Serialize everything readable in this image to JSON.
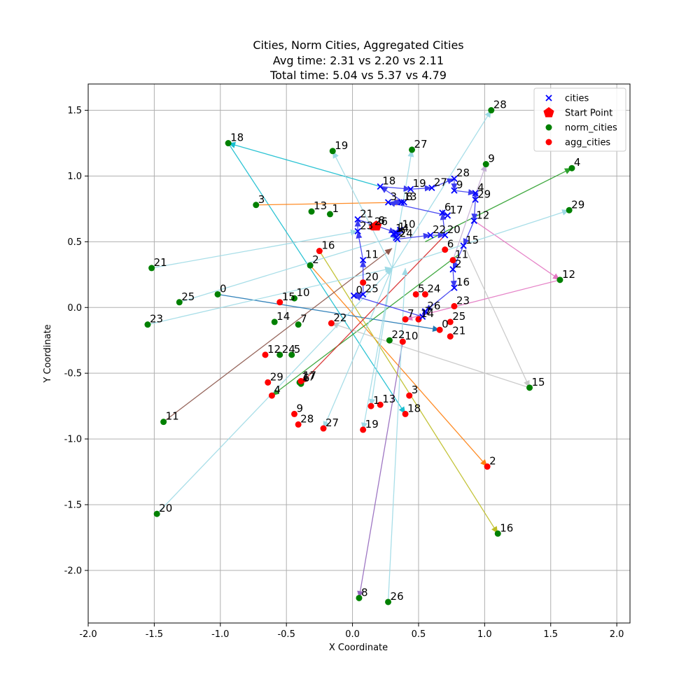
{
  "chart_data": {
    "type": "scatter",
    "title_lines": [
      "Cities, Norm Cities, Aggregated Cities",
      "Avg time: 2.31 vs 2.20 vs 2.11",
      "Total time: 5.04 vs 5.37 vs 4.79"
    ],
    "xlabel": "X Coordinate",
    "ylabel": "Y Coordinate",
    "xlim": [
      -2.0,
      2.1
    ],
    "ylim": [
      -2.4,
      1.7
    ],
    "xticks": [
      -2.0,
      -1.5,
      -1.0,
      -0.5,
      0.0,
      0.5,
      1.0,
      1.5,
      2.0
    ],
    "yticks": [
      -2.0,
      -1.5,
      -1.0,
      -0.5,
      0.0,
      0.5,
      1.0,
      1.5
    ],
    "grid": true,
    "legend_placement": "top-right",
    "legend": [
      {
        "label": "cities",
        "marker": "x",
        "color": "#0000ff"
      },
      {
        "label": "Start Point",
        "marker": "pentagon",
        "color": "#ff0000"
      },
      {
        "label": "norm_cities",
        "marker": "circle",
        "color": "#008000"
      },
      {
        "label": "agg_cities",
        "marker": "circle",
        "color": "#ff0000"
      }
    ],
    "start_point": [
      0.18,
      0.62
    ],
    "cities": [
      {
        "id": "18",
        "x": 0.21,
        "y": 0.92
      },
      {
        "id": "19",
        "x": 0.44,
        "y": 0.9
      },
      {
        "id": "27",
        "x": 0.6,
        "y": 0.91
      },
      {
        "id": "28",
        "x": 0.77,
        "y": 0.98
      },
      {
        "id": "9",
        "x": 0.77,
        "y": 0.89
      },
      {
        "id": "4",
        "x": 0.93,
        "y": 0.87
      },
      {
        "id": "29",
        "x": 0.93,
        "y": 0.82
      },
      {
        "id": "12",
        "x": 0.92,
        "y": 0.66
      },
      {
        "id": "3",
        "x": 0.27,
        "y": 0.8
      },
      {
        "id": "13",
        "x": 0.37,
        "y": 0.8
      },
      {
        "id": "8",
        "x": 0.39,
        "y": 0.8
      },
      {
        "id": "6",
        "x": 0.68,
        "y": 0.72
      },
      {
        "id": "17",
        "x": 0.72,
        "y": 0.7
      },
      {
        "id": "22",
        "x": 0.59,
        "y": 0.55
      },
      {
        "id": "20",
        "x": 0.7,
        "y": 0.55
      },
      {
        "id": "21",
        "x": 0.04,
        "y": 0.67
      },
      {
        "id": "23",
        "x": 0.04,
        "y": 0.58
      },
      {
        "id": "10",
        "x": 0.36,
        "y": 0.59
      },
      {
        "id": "1",
        "x": 0.33,
        "y": 0.57
      },
      {
        "id": "14",
        "x": 0.31,
        "y": 0.56
      },
      {
        "id": "5",
        "x": 0.33,
        "y": 0.53
      },
      {
        "id": "24",
        "x": 0.34,
        "y": 0.52
      },
      {
        "id": "15",
        "x": 0.84,
        "y": 0.47
      },
      {
        "id": "11",
        "x": 0.08,
        "y": 0.36
      },
      {
        "id": "2",
        "x": 0.76,
        "y": 0.29
      },
      {
        "id": "16",
        "x": 0.77,
        "y": 0.15
      },
      {
        "id": "0",
        "x": 0.01,
        "y": 0.09
      },
      {
        "id": "25",
        "x": 0.08,
        "y": 0.1
      },
      {
        "id": "26",
        "x": 0.55,
        "y": -0.03
      },
      {
        "id": "7",
        "x": 0.53,
        "y": -0.07
      }
    ],
    "norm_cities": [
      {
        "id": "0",
        "x": -1.02,
        "y": 0.1
      },
      {
        "id": "1",
        "x": -0.17,
        "y": 0.71
      },
      {
        "id": "2",
        "x": -0.32,
        "y": 0.32
      },
      {
        "id": "3",
        "x": -0.73,
        "y": 0.78
      },
      {
        "id": "4",
        "x": 1.66,
        "y": 1.06
      },
      {
        "id": "5",
        "x": -0.46,
        "y": -0.36
      },
      {
        "id": "6",
        "x": -0.39,
        "y": -0.58
      },
      {
        "id": "7",
        "x": -0.41,
        "y": -0.13
      },
      {
        "id": "8",
        "x": 0.05,
        "y": -2.21
      },
      {
        "id": "9",
        "x": 1.01,
        "y": 1.09
      },
      {
        "id": "10",
        "x": -0.44,
        "y": 0.07
      },
      {
        "id": "11",
        "x": -1.43,
        "y": -0.87
      },
      {
        "id": "12",
        "x": 1.57,
        "y": 0.21
      },
      {
        "id": "13",
        "x": -0.31,
        "y": 0.73
      },
      {
        "id": "14",
        "x": -0.59,
        "y": -0.11
      },
      {
        "id": "15",
        "x": 1.34,
        "y": -0.61
      },
      {
        "id": "16",
        "x": 1.1,
        "y": -1.72
      },
      {
        "id": "17",
        "x": -0.4,
        "y": -0.57
      },
      {
        "id": "18",
        "x": -0.94,
        "y": 1.25
      },
      {
        "id": "19",
        "x": -0.15,
        "y": 1.19
      },
      {
        "id": "20",
        "x": -1.48,
        "y": -1.57
      },
      {
        "id": "21",
        "x": -1.52,
        "y": 0.3
      },
      {
        "id": "22",
        "x": 0.28,
        "y": -0.25
      },
      {
        "id": "23",
        "x": -1.55,
        "y": -0.13
      },
      {
        "id": "24",
        "x": -0.55,
        "y": -0.36
      },
      {
        "id": "25",
        "x": -1.31,
        "y": 0.04
      },
      {
        "id": "26",
        "x": 0.27,
        "y": -2.24
      },
      {
        "id": "27",
        "x": 0.45,
        "y": 1.2
      },
      {
        "id": "28",
        "x": 1.05,
        "y": 1.5
      },
      {
        "id": "29",
        "x": 1.64,
        "y": 0.74
      }
    ],
    "agg_cities": [
      {
        "id": "0",
        "x": 0.66,
        "y": -0.17
      },
      {
        "id": "1",
        "x": 0.14,
        "y": -0.75
      },
      {
        "id": "2",
        "x": 1.02,
        "y": -1.21
      },
      {
        "id": "3",
        "x": 0.43,
        "y": -0.67
      },
      {
        "id": "4",
        "x": -0.61,
        "y": -0.67
      },
      {
        "id": "5",
        "x": 0.48,
        "y": 0.1
      },
      {
        "id": "6",
        "x": 0.7,
        "y": 0.44
      },
      {
        "id": "7",
        "x": 0.4,
        "y": -0.09
      },
      {
        "id": "8",
        "x": 0.18,
        "y": 0.62
      },
      {
        "id": "9",
        "x": -0.44,
        "y": -0.81
      },
      {
        "id": "10",
        "x": 0.38,
        "y": -0.26
      },
      {
        "id": "11",
        "x": 0.76,
        "y": 0.36
      },
      {
        "id": "12",
        "x": -0.66,
        "y": -0.36
      },
      {
        "id": "13",
        "x": 0.21,
        "y": -0.74
      },
      {
        "id": "14",
        "x": 0.5,
        "y": -0.09
      },
      {
        "id": "15",
        "x": -0.55,
        "y": 0.04
      },
      {
        "id": "16",
        "x": -0.25,
        "y": 0.43
      },
      {
        "id": "17",
        "x": -0.39,
        "y": -0.56
      },
      {
        "id": "18",
        "x": 0.4,
        "y": -0.81
      },
      {
        "id": "19",
        "x": 0.08,
        "y": -0.93
      },
      {
        "id": "20",
        "x": 0.08,
        "y": 0.19
      },
      {
        "id": "21",
        "x": 0.74,
        "y": -0.22
      },
      {
        "id": "22",
        "x": -0.16,
        "y": -0.12
      },
      {
        "id": "23",
        "x": 0.77,
        "y": 0.01
      },
      {
        "id": "24",
        "x": 0.55,
        "y": 0.1
      },
      {
        "id": "25",
        "x": 0.74,
        "y": -0.11
      },
      {
        "id": "26",
        "x": 0.15,
        "y": 0.61
      },
      {
        "id": "27",
        "x": -0.22,
        "y": -0.92
      },
      {
        "id": "28",
        "x": -0.41,
        "y": -0.89
      },
      {
        "id": "29",
        "x": -0.64,
        "y": -0.57
      }
    ],
    "cities_route": [
      "18",
      "19",
      "27",
      "28",
      "9",
      "4",
      "29",
      "12",
      "15",
      "2",
      "16",
      "26",
      "7",
      "0",
      "25",
      "11",
      "23",
      "21",
      "1",
      "14",
      "10",
      "5",
      "24",
      "22",
      "20",
      "6",
      "17",
      "3",
      "13",
      "8",
      "18"
    ],
    "norm_routes": [
      {
        "color": "#17becf",
        "from": [
          0.21,
          0.92
        ],
        "to": [
          -0.94,
          1.25
        ]
      },
      {
        "color": "#17becf",
        "from": [
          -0.94,
          1.25
        ],
        "to": [
          0.4,
          -0.81
        ]
      },
      {
        "color": "#ff7f0e",
        "from": [
          -0.73,
          0.78
        ],
        "to": [
          0.38,
          0.8
        ]
      },
      {
        "color": "#ff7f0e",
        "from": [
          -0.32,
          0.32
        ],
        "to": [
          1.02,
          -1.21
        ]
      },
      {
        "color": "#2ca02c",
        "from": [
          0.55,
          0.5
        ],
        "to": [
          1.66,
          1.06
        ]
      },
      {
        "color": "#2ca02c",
        "from": [
          0.8,
          0.4
        ],
        "to": [
          -0.61,
          -0.67
        ]
      },
      {
        "color": "#e377c2",
        "from": [
          0.92,
          0.66
        ],
        "to": [
          1.57,
          0.21
        ]
      },
      {
        "color": "#e377c2",
        "from": [
          1.57,
          0.21
        ],
        "to": [
          0.4,
          -0.09
        ]
      },
      {
        "color": "#bcbd22",
        "from": [
          -0.25,
          0.43
        ],
        "to": [
          1.1,
          -1.72
        ]
      },
      {
        "color": "#c7c7c7",
        "from": [
          0.85,
          0.46
        ],
        "to": [
          1.34,
          -0.61
        ]
      },
      {
        "color": "#c7c7c7",
        "from": [
          1.34,
          -0.61
        ],
        "to": [
          -0.16,
          -0.12
        ]
      },
      {
        "color": "#9467bd",
        "from": [
          0.38,
          -0.26
        ],
        "to": [
          0.05,
          -2.21
        ]
      },
      {
        "color": "#c5b0d5",
        "from": [
          0.76,
          0.36
        ],
        "to": [
          1.01,
          1.09
        ]
      },
      {
        "color": "#8c564b",
        "from": [
          -1.43,
          -0.87
        ],
        "to": [
          0.3,
          0.45
        ]
      },
      {
        "color": "#1f77b4",
        "from": [
          -1.02,
          0.1
        ],
        "to": [
          0.66,
          -0.17
        ]
      },
      {
        "color": "#d62728",
        "from": [
          0.7,
          0.55
        ],
        "to": [
          -0.39,
          -0.58
        ]
      },
      {
        "color": "#9edae5",
        "from": [
          -1.48,
          -1.57
        ],
        "to": [
          0.3,
          0.3
        ]
      },
      {
        "color": "#9edae5",
        "from": [
          -1.52,
          0.3
        ],
        "to": [
          0.04,
          0.58
        ]
      },
      {
        "color": "#9edae5",
        "from": [
          -1.55,
          -0.13
        ],
        "to": [
          0.3,
          0.3
        ]
      },
      {
        "color": "#9edae5",
        "from": [
          -1.31,
          0.04
        ],
        "to": [
          0.35,
          0.55
        ]
      },
      {
        "color": "#9edae5",
        "from": [
          0.3,
          0.3
        ],
        "to": [
          1.05,
          1.5
        ]
      },
      {
        "color": "#9edae5",
        "from": [
          0.3,
          0.3
        ],
        "to": [
          1.64,
          0.74
        ]
      },
      {
        "color": "#9edae5",
        "from": [
          0.3,
          0.3
        ],
        "to": [
          0.45,
          1.2
        ]
      },
      {
        "color": "#9edae5",
        "from": [
          0.3,
          0.3
        ],
        "to": [
          -0.15,
          1.19
        ]
      },
      {
        "color": "#9edae5",
        "from": [
          0.27,
          -2.24
        ],
        "to": [
          0.4,
          0.3
        ]
      },
      {
        "color": "#9edae5",
        "from": [
          0.3,
          0.3
        ],
        "to": [
          -0.22,
          -0.92
        ]
      },
      {
        "color": "#9edae5",
        "from": [
          0.3,
          0.3
        ],
        "to": [
          0.08,
          -0.93
        ]
      },
      {
        "color": "#9edae5",
        "from": [
          0.3,
          0.3
        ],
        "to": [
          0.14,
          -0.75
        ]
      }
    ]
  }
}
